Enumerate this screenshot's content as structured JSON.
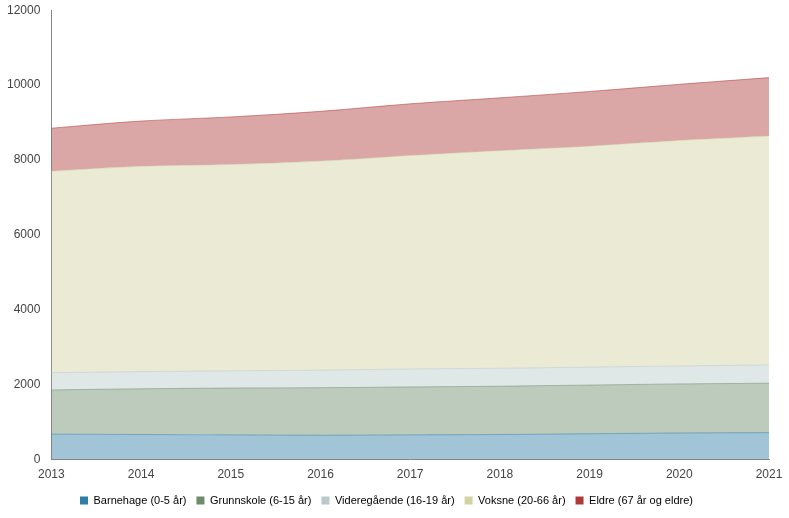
{
  "chart_data": {
    "type": "area",
    "stacked": true,
    "grid": false,
    "legend": "bottom",
    "categories": [
      "2013",
      "2014",
      "2015",
      "2016",
      "2017",
      "2018",
      "2019",
      "2020",
      "2021"
    ],
    "ylim": [
      0,
      12000
    ],
    "yticks": [
      0,
      2000,
      4000,
      6000,
      8000,
      10000,
      12000
    ],
    "series": [
      {
        "name": "Barnehage (0-5 år)",
        "color": "#2e7ea6",
        "values": [
          680,
          670,
          660,
          650,
          660,
          670,
          690,
          710,
          720
        ]
      },
      {
        "name": "Grunnskole (6-15 år)",
        "color": "#6c8c6c",
        "values": [
          1180,
          1220,
          1250,
          1270,
          1280,
          1290,
          1300,
          1310,
          1320
        ]
      },
      {
        "name": "Videregående (16-19 år)",
        "color": "#b9c9c9",
        "values": [
          460,
          460,
          460,
          470,
          480,
          480,
          480,
          480,
          490
        ]
      },
      {
        "name": "Voksne (20-66 år)",
        "color": "#d2d2a2",
        "values": [
          5380,
          5480,
          5510,
          5580,
          5700,
          5810,
          5900,
          6020,
          6110
        ]
      },
      {
        "name": "Eldre (67 år og eldre)",
        "color": "#b03a3a",
        "values": [
          1150,
          1210,
          1270,
          1330,
          1380,
          1410,
          1460,
          1500,
          1560
        ]
      }
    ]
  }
}
